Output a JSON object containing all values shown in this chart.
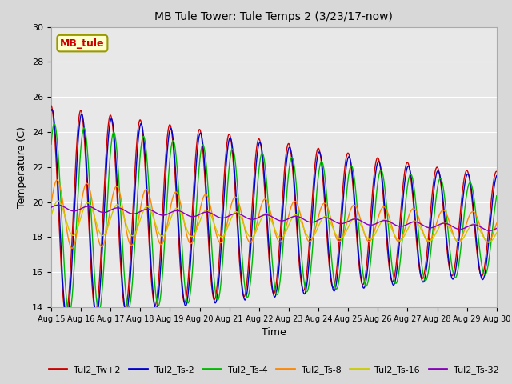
{
  "title": "MB Tule Tower: Tule Temps 2 (3/23/17-now)",
  "xlabel": "Time",
  "ylabel": "Temperature (C)",
  "ylim": [
    14,
    30
  ],
  "xlim": [
    0,
    15
  ],
  "background_color": "#d8d8d8",
  "plot_background": "#e8e8e8",
  "grid_color": "#ffffff",
  "x_tick_labels": [
    "Aug 15",
    "Aug 16",
    "Aug 17",
    "Aug 18",
    "Aug 19",
    "Aug 20",
    "Aug 21",
    "Aug 22",
    "Aug 23",
    "Aug 24",
    "Aug 25",
    "Aug 26",
    "Aug 27",
    "Aug 28",
    "Aug 29",
    "Aug 30"
  ],
  "legend_label": "MB_tule",
  "series_colors": {
    "Tul2_Tw+2": "#cc0000",
    "Tul2_Ts-2": "#0000cc",
    "Tul2_Ts-4": "#00bb00",
    "Tul2_Ts-8": "#ff8800",
    "Tul2_Ts-16": "#cccc00",
    "Tul2_Ts-32": "#8800bb"
  }
}
